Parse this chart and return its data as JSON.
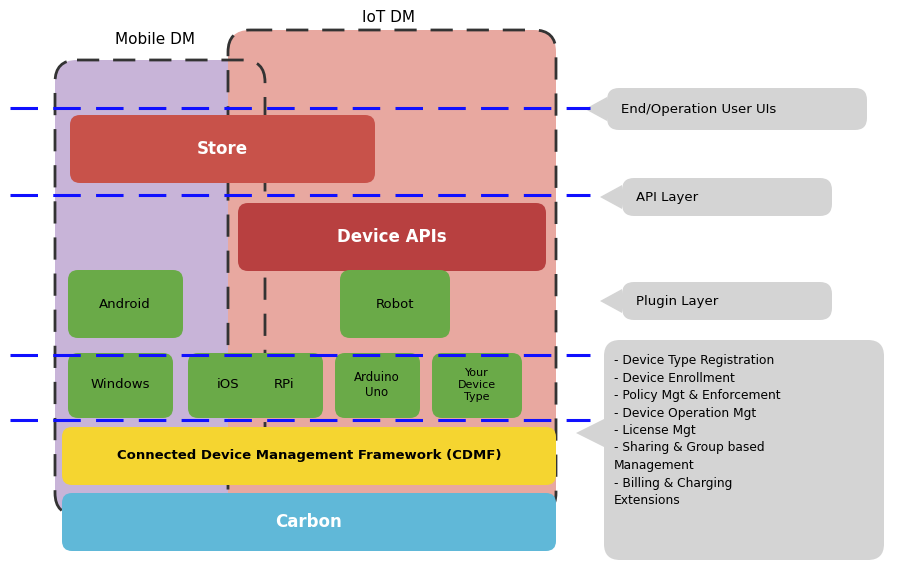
{
  "mobile_dm_label": "Mobile DM",
  "iot_dm_label": "IoT DM",
  "store_label": "Store",
  "device_apis_label": "Device APIs",
  "android_label": "Android",
  "windows_label": "Windows",
  "ios_label": "iOS",
  "robot_label": "Robot",
  "rpi_label": "RPi",
  "arduino_label": "Arduino\nUno",
  "yourdevice_label": "Your\nDevice\nType",
  "cdmf_label": "Connected Device Management Framework (CDMF)",
  "carbon_label": "Carbon",
  "end_user_label": "End/Operation User UIs",
  "api_layer_label": "API Layer",
  "plugin_layer_label": "Plugin Layer",
  "cdmf_details": "- Device Type Registration\n- Device Enrollment\n- Policy Mgt & Enforcement\n- Device Operation Mgt\n- License Mgt\n- Sharing & Group based\nManagement\n- Billing & Charging\nExtensions",
  "color_mobile_bg": "#c8b4d8",
  "color_iot_bg": "#e8a8a0",
  "color_store": "#c8524a",
  "color_device_apis": "#b84040",
  "color_green_box": "#6aaa48",
  "color_cdmf": "#f5d530",
  "color_carbon": "#60b8d8",
  "color_label_box": "#d4d4d4",
  "color_dashed_line": "#1010ff",
  "color_dashed_border": "#333333"
}
